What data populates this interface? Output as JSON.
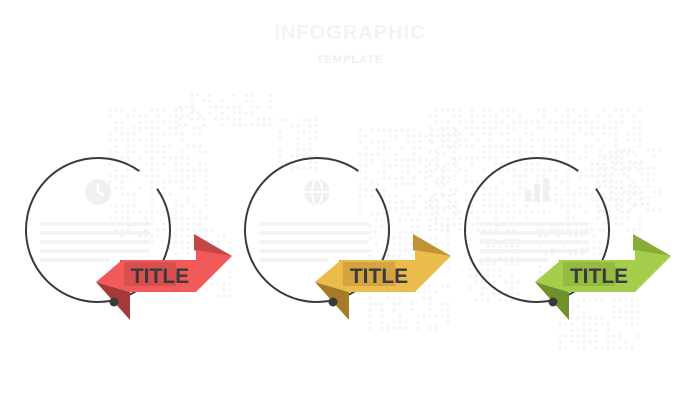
{
  "header": {
    "title": "INFOGRAPHIC",
    "subtitle": "TEMPLATE"
  },
  "colors": {
    "outline": "#3a3a3a",
    "map_dots": "#f2f2f2",
    "title_text": "#3a3a3a"
  },
  "steps": [
    {
      "title": "TITLE",
      "icon": "clock-icon",
      "color": "#f25a5a",
      "shade": "#c44646",
      "dark": "#a53838"
    },
    {
      "title": "TITLE",
      "icon": "globe-icon",
      "color": "#ebbb4e",
      "shade": "#c29236",
      "dark": "#a57b2a"
    },
    {
      "title": "TITLE",
      "icon": "chart-icon",
      "color": "#a4cd4c",
      "shade": "#87ad35",
      "dark": "#6f912a"
    }
  ]
}
